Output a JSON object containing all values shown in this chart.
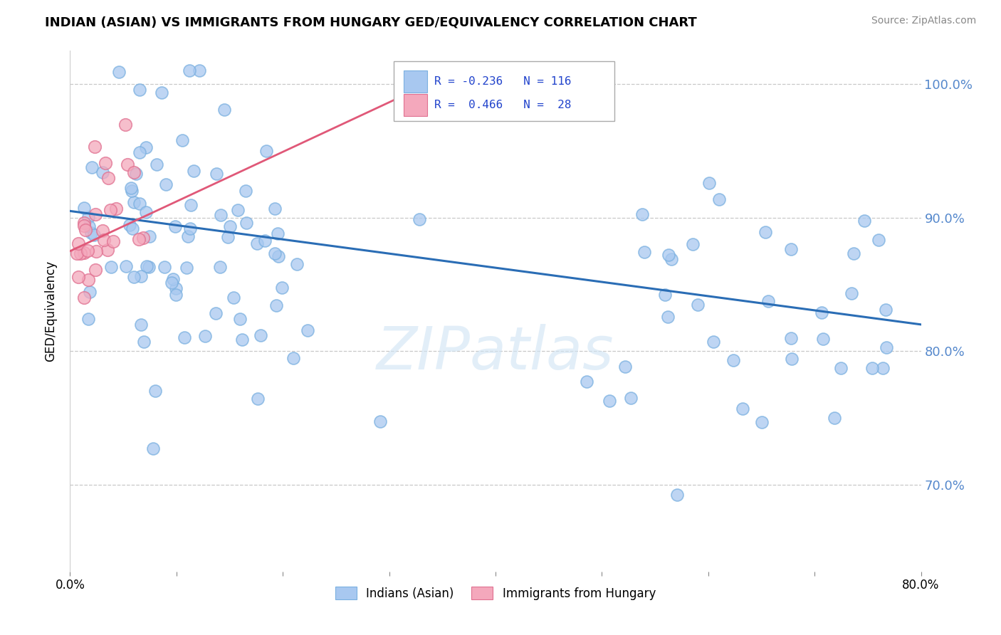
{
  "title": "INDIAN (ASIAN) VS IMMIGRANTS FROM HUNGARY GED/EQUIVALENCY CORRELATION CHART",
  "source": "Source: ZipAtlas.com",
  "ylabel": "GED/Equivalency",
  "watermark": "ZIPatlas",
  "legend_entry1_label": "Indians (Asian)",
  "legend_entry2_label": "Immigrants from Hungary",
  "legend_r1": "R = -0.236",
  "legend_n1": "N = 116",
  "legend_r2": "R =  0.466",
  "legend_n2": "N =  28",
  "blue_color": "#a8c8f0",
  "blue_edge_color": "#7ab0e0",
  "pink_color": "#f4a8bc",
  "pink_edge_color": "#e07090",
  "blue_line_color": "#2a6db5",
  "pink_line_color": "#e05878",
  "background_color": "#ffffff",
  "grid_color": "#c8c8c8",
  "xlim": [
    0.0,
    0.8
  ],
  "ylim": [
    0.635,
    1.025
  ],
  "yticks": [
    0.7,
    0.8,
    0.9,
    1.0
  ],
  "ytick_labels": [
    "70.0%",
    "80.0%",
    "90.0%",
    "100.0%"
  ],
  "xticks": [
    0.0,
    0.1,
    0.2,
    0.3,
    0.4,
    0.5,
    0.6,
    0.7,
    0.8
  ],
  "blue_trend_x0": 0.0,
  "blue_trend_y0": 0.905,
  "blue_trend_x1": 0.8,
  "blue_trend_y1": 0.82,
  "pink_trend_x0": 0.0,
  "pink_trend_y0": 0.875,
  "pink_trend_x1": 0.35,
  "pink_trend_y1": 1.005
}
